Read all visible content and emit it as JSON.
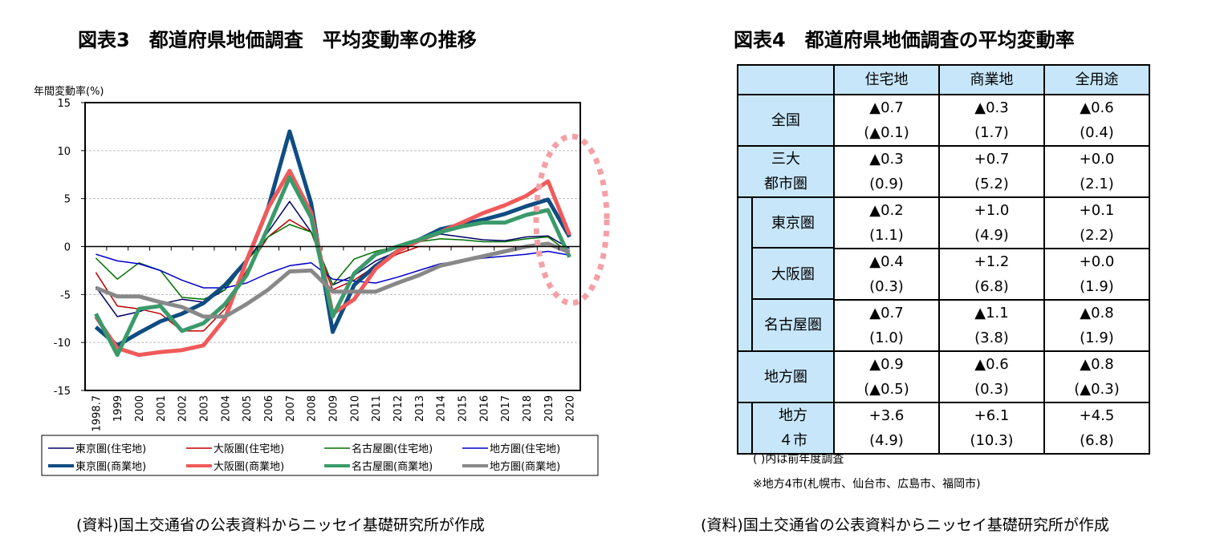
{
  "left": {
    "title": "図表3　都道府県地価調査　平均変動率の推移",
    "source": "(資料)国土交通省の公表資料からニッセイ基礎研究所が作成"
  },
  "right": {
    "title": "図表4　都道府県地価調査の平均変動率",
    "source": "(資料)国土交通省の公表資料からニッセイ基礎研究所が作成",
    "note1": "( )内は前年度調査",
    "note2": "※地方4市(札幌市、仙台市、広島市、福岡市)"
  },
  "chart_data": [
    {
      "type": "line",
      "title": "",
      "ylabel": "年間変動率(%)",
      "xlabel": "",
      "ylim": [
        -15,
        15
      ],
      "yticks": [
        15,
        10,
        5,
        0,
        -5,
        -10,
        -15
      ],
      "grid": "horizontal dashed",
      "legend_placement": "bottom",
      "annotation": "dotted pink ellipse around 2019-2020",
      "categories": [
        "1998.7",
        "1999",
        "2000",
        "2001",
        "2002",
        "2003",
        "2004",
        "2005",
        "2006",
        "2007",
        "2008",
        "2009",
        "2010",
        "2011",
        "2012",
        "2013",
        "2014",
        "2015",
        "2016",
        "2017",
        "2018",
        "2019",
        "2020"
      ],
      "series": [
        {
          "name": "東京圏(住宅地)",
          "color": "#000066",
          "width": 1.5,
          "values": [
            -4.2,
            -7.3,
            -6.8,
            -6.0,
            -5.5,
            -5.8,
            -4.5,
            -1.5,
            1.5,
            4.7,
            1.5,
            -4.0,
            -3.0,
            -1.5,
            -0.5,
            0.5,
            1.3,
            1.0,
            0.7,
            0.6,
            1.0,
            1.1,
            -0.2
          ]
        },
        {
          "name": "大阪圏(住宅地)",
          "color": "#c00000",
          "width": 1.5,
          "values": [
            -2.7,
            -6.2,
            -6.5,
            -7.0,
            -8.8,
            -8.8,
            -6.5,
            -2.5,
            1.0,
            2.8,
            1.5,
            -4.5,
            -3.5,
            -2.0,
            -0.8,
            0.0,
            0.0,
            0.0,
            0.0,
            0.0,
            0.0,
            0.3,
            -0.4
          ]
        },
        {
          "name": "名古屋圏(住宅地)",
          "color": "#007000",
          "width": 1.5,
          "values": [
            -1.2,
            -3.4,
            -1.7,
            -2.5,
            -5.3,
            -5.5,
            -4.5,
            -1.5,
            1.0,
            2.3,
            1.5,
            -4.0,
            -1.3,
            -0.5,
            0.0,
            0.5,
            0.8,
            0.7,
            0.5,
            0.5,
            0.8,
            1.0,
            -0.7
          ]
        },
        {
          "name": "地方圏(住宅地)",
          "color": "#0000cc",
          "width": 1.5,
          "values": [
            -0.8,
            -1.5,
            -1.8,
            -2.5,
            -3.5,
            -4.3,
            -4.3,
            -3.8,
            -2.8,
            -2.0,
            -1.7,
            -3.4,
            -3.6,
            -3.8,
            -3.2,
            -2.5,
            -1.8,
            -1.5,
            -1.2,
            -1.0,
            -0.8,
            -0.5,
            -0.9
          ]
        },
        {
          "name": "東京圏(商業地)",
          "color": "#0f4c81",
          "width": 5,
          "values": [
            -8.4,
            -10.3,
            -9.0,
            -7.8,
            -7.0,
            -5.9,
            -4.0,
            -1.5,
            4.0,
            12.0,
            4.5,
            -8.9,
            -4.0,
            -2.0,
            -0.5,
            0.7,
            1.8,
            2.3,
            2.8,
            3.4,
            4.2,
            4.9,
            1.0
          ]
        },
        {
          "name": "大阪圏(商業地)",
          "color": "#f05a5a",
          "width": 5,
          "values": [
            -7.3,
            -10.6,
            -11.3,
            -11.0,
            -10.8,
            -10.3,
            -7.5,
            -1.5,
            4.0,
            7.9,
            3.5,
            -7.0,
            -5.5,
            -2.3,
            -0.5,
            0.6,
            1.5,
            2.5,
            3.5,
            4.3,
            5.3,
            6.8,
            1.2
          ]
        },
        {
          "name": "名古屋圏(商業地)",
          "color": "#3a9a6a",
          "width": 5,
          "values": [
            -7.0,
            -11.3,
            -6.5,
            -6.2,
            -8.8,
            -8.0,
            -6.0,
            -3.0,
            2.0,
            7.2,
            3.0,
            -7.3,
            -2.8,
            -0.8,
            0.0,
            0.7,
            1.5,
            2.1,
            2.5,
            2.5,
            3.3,
            3.8,
            -1.1
          ]
        },
        {
          "name": "地方圏(商業地)",
          "color": "#888888",
          "width": 5,
          "values": [
            -4.3,
            -5.2,
            -5.2,
            -5.8,
            -6.3,
            -7.3,
            -7.3,
            -6.0,
            -4.5,
            -2.6,
            -2.5,
            -4.7,
            -4.7,
            -4.7,
            -3.8,
            -3.0,
            -2.0,
            -1.5,
            -1.0,
            -0.5,
            0.0,
            0.3,
            -0.6
          ]
        }
      ]
    },
    {
      "type": "table",
      "header_color": "#c7e6fa",
      "columns": [
        "",
        "住宅地",
        "商業地",
        "全用途"
      ],
      "rows": [
        {
          "label": "全国",
          "sub": false,
          "cells": [
            [
              "▲0.7",
              "(▲0.1)"
            ],
            [
              "▲0.3",
              "(1.7)"
            ],
            [
              "▲0.6",
              "(0.4)"
            ]
          ]
        },
        {
          "label": "三大\n都市圏",
          "sub": false,
          "cells": [
            [
              "▲0.3",
              "(0.9)"
            ],
            [
              "+0.7",
              "(5.2)"
            ],
            [
              "+0.0",
              "(2.1)"
            ]
          ]
        },
        {
          "label": "東京圏",
          "sub": true,
          "cells": [
            [
              "▲0.2",
              "(1.1)"
            ],
            [
              "+1.0",
              "(4.9)"
            ],
            [
              "+0.1",
              "(2.2)"
            ]
          ]
        },
        {
          "label": "大阪圏",
          "sub": true,
          "cells": [
            [
              "▲0.4",
              "(0.3)"
            ],
            [
              "+1.2",
              "(6.8)"
            ],
            [
              "+0.0",
              "(1.9)"
            ]
          ]
        },
        {
          "label": "名古屋圏",
          "sub": true,
          "last": true,
          "cells": [
            [
              "▲0.7",
              "(1.0)"
            ],
            [
              "▲1.1",
              "(3.8)"
            ],
            [
              "▲0.8",
              "(1.9)"
            ]
          ]
        },
        {
          "label": "地方圏",
          "sub": false,
          "cells": [
            [
              "▲0.9",
              "(▲0.5)"
            ],
            [
              "▲0.6",
              "(0.3)"
            ],
            [
              "▲0.8",
              "(▲0.3)"
            ]
          ]
        },
        {
          "label": "地方\n４市",
          "sub": true,
          "last": true,
          "cells": [
            [
              "+3.6",
              "(4.9)"
            ],
            [
              "+6.1",
              "(10.3)"
            ],
            [
              "+4.5",
              "(6.8)"
            ]
          ]
        }
      ]
    }
  ]
}
